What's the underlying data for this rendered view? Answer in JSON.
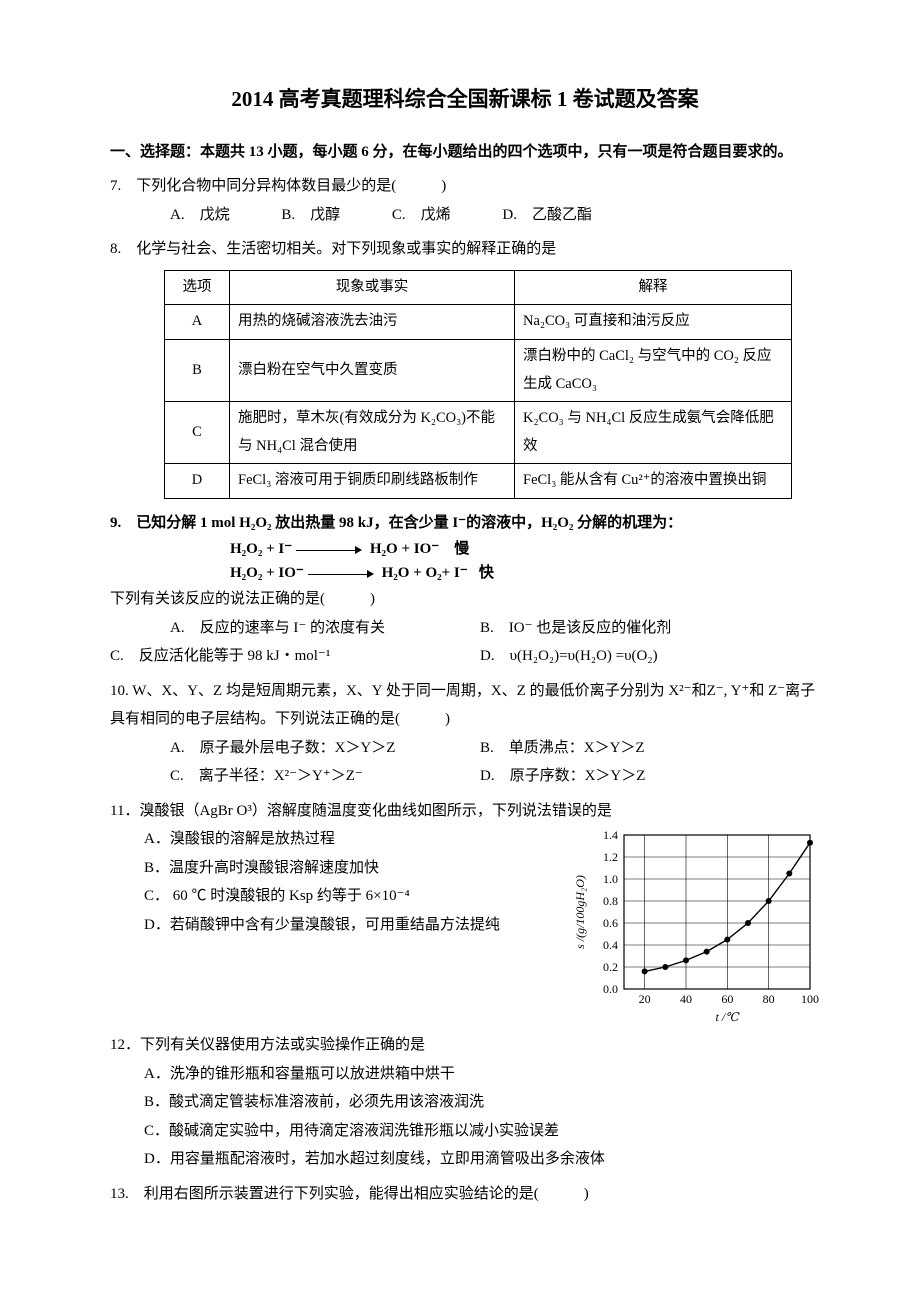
{
  "title": "2014 高考真题理科综合全国新课标 1 卷试题及答案",
  "section1": "一、选择题：本题共 13 小题，每小题 6 分，在每小题给出的四个选项中，只有一项是符合题目要求的。",
  "q7": {
    "stem": "7.　下列化合物中同分异构体数目最少的是(　　　)",
    "A": "A.　戊烷",
    "B": "B.　戊醇",
    "C": "C.　戊烯",
    "D": "D.　乙酸乙酯"
  },
  "q8": {
    "stem": "8.　化学与社会、生活密切相关。对下列现象或事实的解释正确的是",
    "head_opt": "选项",
    "head_ph": "现象或事实",
    "head_ex": "解释",
    "rows": [
      {
        "o": "A",
        "p": "用热的烧碱溶液洗去油污",
        "e": "Na₂CO₃ 可直接和油污反应"
      },
      {
        "o": "B",
        "p": "漂白粉在空气中久置变质",
        "e": "漂白粉中的 CaCl₂ 与空气中的 CO₂ 反应生成 CaCO₃"
      },
      {
        "o": "C",
        "p": "施肥时，草木灰(有效成分为 K₂CO₃)不能与 NH₄Cl 混合使用",
        "e": "K₂CO₃ 与 NH₄Cl 反应生成氨气会降低肥效"
      },
      {
        "o": "D",
        "p": "FeCl₃ 溶液可用于铜质印刷线路板制作",
        "e": "FeCl₃ 能从含有 Cu²⁺的溶液中置换出铜"
      }
    ]
  },
  "q9": {
    "stem": "9.　已知分解  1 mol H₂O₂  放出热量  98 kJ，在含少量  I⁻的溶液中，H₂O₂  分解的机理为：",
    "m1a": "H₂O₂ + I⁻",
    "m1b": "H₂O + IO⁻",
    "m1s": "慢",
    "m2a": "H₂O₂ + IO⁻",
    "m2b": "H₂O + O₂+ I⁻",
    "m2s": "快",
    "sub": "下列有关该反应的说法正确的是(　　　)",
    "A": "A.　反应的速率与 I⁻  的浓度有关",
    "B": "B.　IO⁻  也是该反应的催化剂",
    "C": "C.　反应活化能等于  98 kJ・mol⁻¹",
    "D": "D.　υ(H₂O₂)=υ(H₂O) =υ(O₂)"
  },
  "q10": {
    "stem": "10. W、X、Y、Z  均是短周期元素，X、Y  处于同一周期，X、Z  的最低价离子分别为  X²⁻和Z⁻, Y⁺和  Z⁻离子具有相同的电子层结构。下列说法正确的是(　　　)",
    "A": "A.　原子最外层电子数：X＞Y＞Z",
    "B": "B.　单质沸点：X＞Y＞Z",
    "C": "C.　离子半径：X²⁻＞Y⁺＞Z⁻",
    "D": "D.　原子序数：X＞Y＞Z"
  },
  "q11": {
    "stem": "11．溴酸银（AgBr O³）溶解度随温度变化曲线如图所示，下列说法错误的是",
    "A": "A．溴酸银的溶解是放热过程",
    "B": "B．温度升高时溴酸银溶解速度加快",
    "C": "C．  60 ℃  时溴酸银的 Ksp 约等于  6×10⁻⁴",
    "D": "D．若硝酸钾中含有少量溴酸银，可用重结晶方法提纯",
    "graph": {
      "xlabel": "t /℃",
      "ylabel": "s /(g/100gH₂O)",
      "xticks": [
        20,
        40,
        60,
        80,
        100
      ],
      "yticks": [
        0.0,
        0.2,
        0.4,
        0.6,
        0.8,
        1.0,
        1.2,
        1.4
      ],
      "points": [
        {
          "x": 20,
          "y": 0.16
        },
        {
          "x": 30,
          "y": 0.2
        },
        {
          "x": 40,
          "y": 0.26
        },
        {
          "x": 50,
          "y": 0.34
        },
        {
          "x": 60,
          "y": 0.45
        },
        {
          "x": 70,
          "y": 0.6
        },
        {
          "x": 80,
          "y": 0.8
        },
        {
          "x": 90,
          "y": 1.05
        },
        {
          "x": 100,
          "y": 1.33
        }
      ],
      "colors": {
        "bg": "#ffffff",
        "axis": "#000000",
        "grid": "#000000",
        "curve": "#000000",
        "marker": "#000000"
      },
      "xlim": [
        10,
        100
      ],
      "ylim": [
        0,
        1.4
      ],
      "marker_size": 3,
      "line_width": 1.4,
      "grid_width": 0.6,
      "axis_fontsize": 12,
      "label_fontsize": 12
    }
  },
  "q12": {
    "stem": "12．下列有关仪器使用方法或实验操作正确的是",
    "A": "A．洗净的锥形瓶和容量瓶可以放进烘箱中烘干",
    "B": "B．酸式滴定管装标准溶液前，必须先用该溶液润洗",
    "C": "C．酸碱滴定实验中，用待滴定溶液润洗锥形瓶以减小实验误差",
    "D": "D．用容量瓶配溶液时，若加水超过刻度线，立即用滴管吸出多余液体"
  },
  "q13": {
    "stem": "13.　利用右图所示装置进行下列实验，能得出相应实验结论的是(　　　)"
  }
}
